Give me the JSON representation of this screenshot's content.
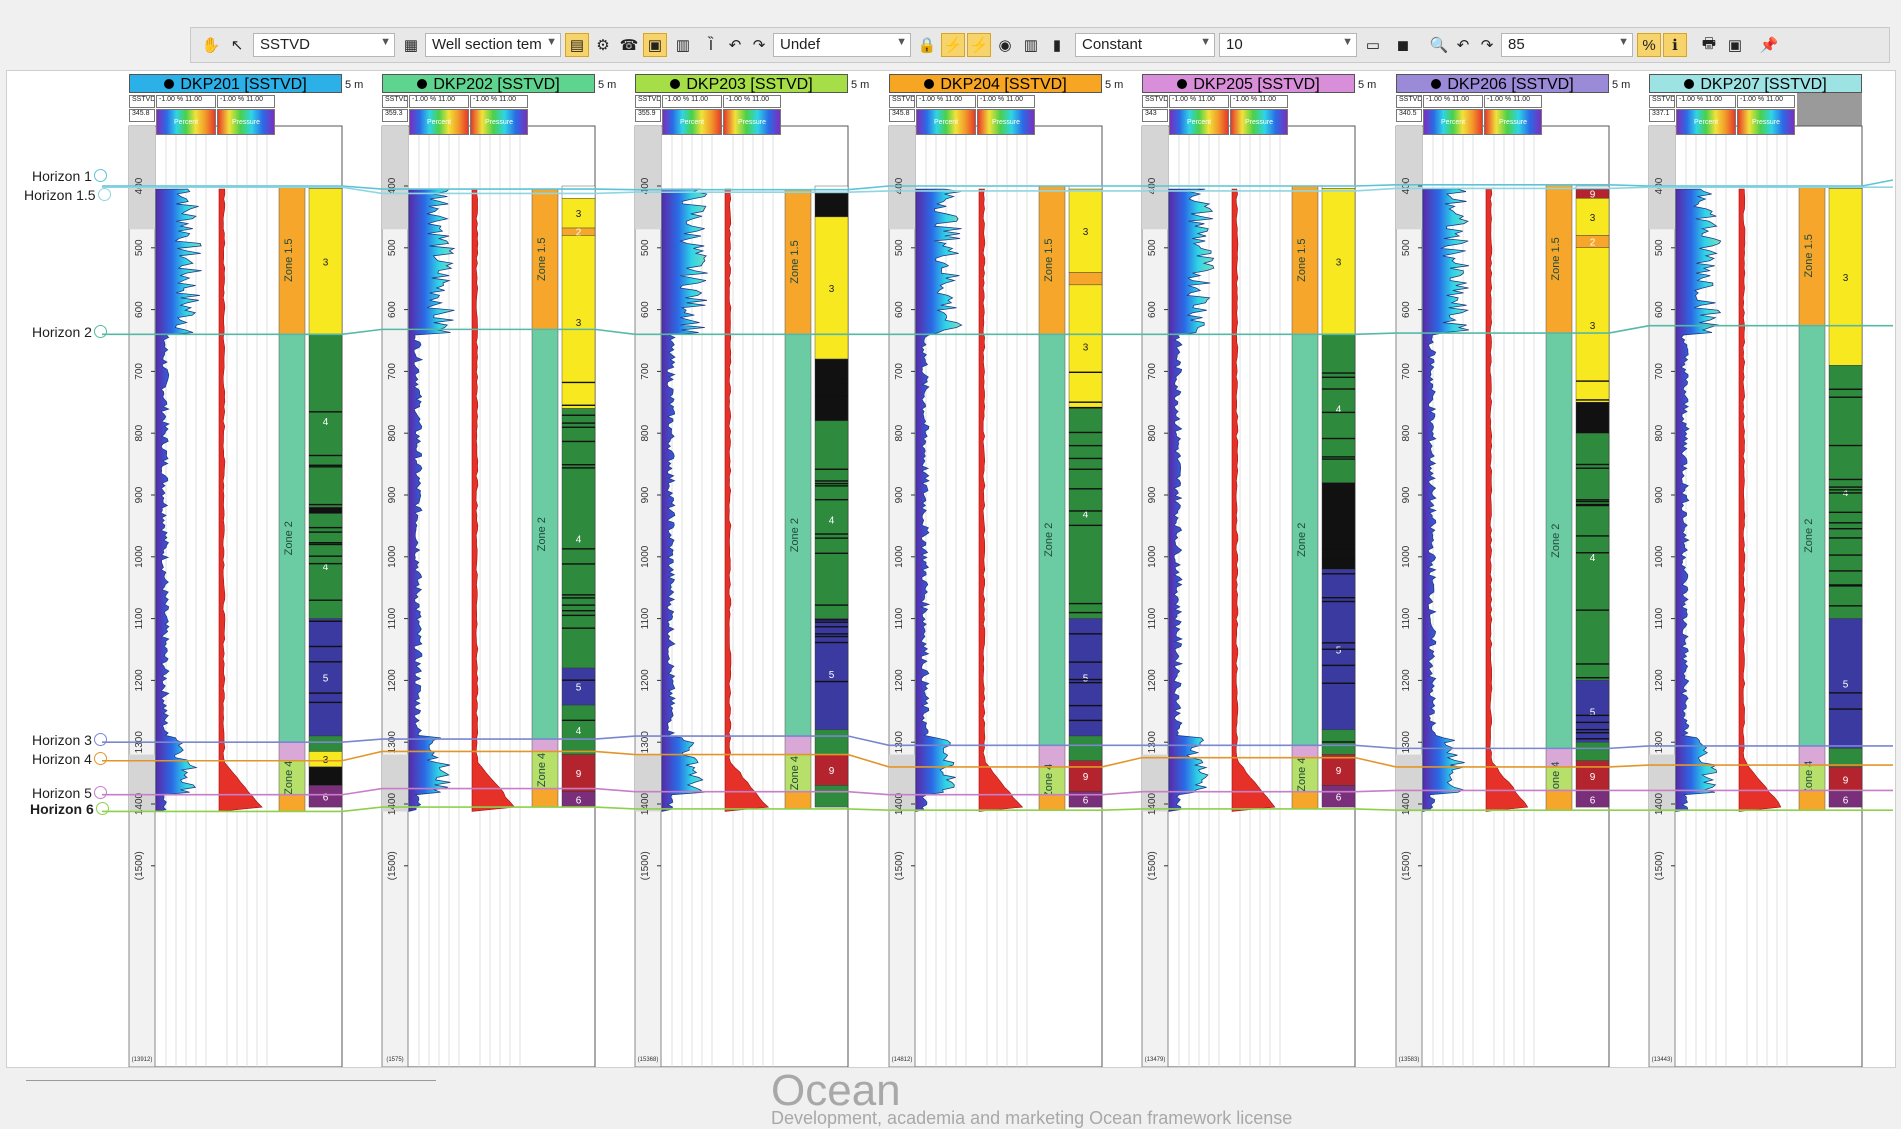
{
  "toolbar": {
    "depth_mode": "SSTVD",
    "template": "Well section tem",
    "undef": "Undef",
    "scale_mode": "Constant",
    "scale_value": "10",
    "zoom": "85"
  },
  "spacing_label": "5 m",
  "depth_ticks": [
    "400",
    "500",
    "600",
    "700",
    "800",
    "900",
    "1000",
    "1100",
    "1200",
    "1300",
    "1400",
    "(1500)"
  ],
  "track_legend": {
    "sstvd": "SSTVD",
    "range": "-1.00 % 11.00",
    "percent": "Percent",
    "pressure": "Pressure"
  },
  "horizons": [
    {
      "name": "Horizon 1",
      "color": "#5cc4d6",
      "bold": false
    },
    {
      "name": "Horizon 1.5",
      "color": "#8fd6e2",
      "bold": false
    },
    {
      "name": "Horizon 2",
      "color": "#55b9a6",
      "bold": false
    },
    {
      "name": "Horizon 3",
      "color": "#7a86d0",
      "bold": false
    },
    {
      "name": "Horizon 4",
      "color": "#e2962a",
      "bold": false
    },
    {
      "name": "Horizon 5",
      "color": "#c77ec9",
      "bold": false
    },
    {
      "name": "Horizon 6",
      "color": "#8fd04a",
      "bold": true
    }
  ],
  "zones": {
    "z15": "Zone 1.5",
    "z2": "Zone 2",
    "z4": "Zone 4"
  },
  "colors": {
    "z15": "#f6a62b",
    "z2": "#6bcba3",
    "z3": "#d9a8d6",
    "z4": "#b7e06b"
  },
  "wells": [
    {
      "name": "DKP201 [SSTVD]",
      "color": "#2bb0e8",
      "top_value": "345.8",
      "bottom_value": "(13912)",
      "facies": [
        [
          400,
          "#ffffff",
          ""
        ],
        [
          404,
          "#f8e81f",
          "3"
        ],
        [
          640,
          "#2e8b3d",
          "4"
        ],
        [
          920,
          "#111111",
          ""
        ],
        [
          930,
          "#2e8b3d",
          "4"
        ],
        [
          1100,
          "#3b3aa0",
          "5"
        ],
        [
          1290,
          "#2e8b3d",
          ""
        ],
        [
          1315,
          "#f8e81f",
          "3"
        ],
        [
          1340,
          "#111111",
          ""
        ],
        [
          1370,
          "#7a2f7a",
          "6"
        ],
        [
          1405,
          "#ffffff",
          ""
        ]
      ]
    },
    {
      "name": "DKP202 [SSTVD]",
      "color": "#5ed48f",
      "top_value": "359.3",
      "bottom_value": "(1575)",
      "facies": [
        [
          400,
          "#ffffff",
          ""
        ],
        [
          420,
          "#f8e81f",
          "3"
        ],
        [
          468,
          "#f6a62b",
          "2"
        ],
        [
          480,
          "#f8e81f",
          "3"
        ],
        [
          760,
          "#2e8b3d",
          "4"
        ],
        [
          1180,
          "#3b3aa0",
          "5"
        ],
        [
          1240,
          "#2e8b3d",
          "4"
        ],
        [
          1320,
          "#b3242f",
          "9"
        ],
        [
          1380,
          "#7a2f7a",
          "6"
        ],
        [
          1405,
          "#ffffff",
          ""
        ]
      ]
    },
    {
      "name": "DKP203 [SSTVD]",
      "color": "#a6de47",
      "top_value": "355.9",
      "bottom_value": "(15368)",
      "facies": [
        [
          400,
          "#ffffff",
          ""
        ],
        [
          412,
          "#111111",
          ""
        ],
        [
          450,
          "#f8e81f",
          "3"
        ],
        [
          680,
          "#111111",
          ""
        ],
        [
          780,
          "#2e8b3d",
          "4"
        ],
        [
          1100,
          "#3b3aa0",
          "5"
        ],
        [
          1280,
          "#2e8b3d",
          ""
        ],
        [
          1320,
          "#b3242f",
          "9"
        ],
        [
          1370,
          "#2e8b3d",
          ""
        ],
        [
          1405,
          "#ffffff",
          ""
        ]
      ]
    },
    {
      "name": "DKP204 [SSTVD]",
      "color": "#f6a623",
      "top_value": "345.8",
      "bottom_value": "(14812)",
      "facies": [
        [
          400,
          "#ffffff",
          ""
        ],
        [
          405,
          "#f8e81f",
          "3"
        ],
        [
          540,
          "#f6a62b",
          ""
        ],
        [
          560,
          "#f8e81f",
          "3"
        ],
        [
          760,
          "#2e8b3d",
          "4"
        ],
        [
          1100,
          "#3b3aa0",
          "5"
        ],
        [
          1290,
          "#2e8b3d",
          ""
        ],
        [
          1330,
          "#b3242f",
          "9"
        ],
        [
          1380,
          "#7a2f7a",
          "6"
        ],
        [
          1405,
          "#ffffff",
          ""
        ]
      ]
    },
    {
      "name": "DKP205 [SSTVD]",
      "color": "#d98ed9",
      "top_value": "343",
      "bottom_value": "(13479)",
      "facies": [
        [
          400,
          "#ffffff",
          ""
        ],
        [
          404,
          "#f8e81f",
          "3"
        ],
        [
          640,
          "#2e8b3d",
          "4"
        ],
        [
          880,
          "#111111",
          ""
        ],
        [
          1020,
          "#3b3aa0",
          "5"
        ],
        [
          1280,
          "#2e8b3d",
          ""
        ],
        [
          1320,
          "#b3242f",
          "9"
        ],
        [
          1370,
          "#7a2f7a",
          "6"
        ],
        [
          1405,
          "#ffffff",
          ""
        ]
      ]
    },
    {
      "name": "DKP206 [SSTVD]",
      "color": "#9a8ad8",
      "top_value": "340.5",
      "bottom_value": "(13583)",
      "facies": [
        [
          400,
          "#ffffff",
          ""
        ],
        [
          405,
          "#b3242f",
          "9"
        ],
        [
          420,
          "#f8e81f",
          "3"
        ],
        [
          480,
          "#f6a62b",
          "2"
        ],
        [
          500,
          "#f8e81f",
          "3"
        ],
        [
          750,
          "#111111",
          ""
        ],
        [
          800,
          "#2e8b3d",
          "4"
        ],
        [
          1200,
          "#3b3aa0",
          "5"
        ],
        [
          1300,
          "#2e8b3d",
          ""
        ],
        [
          1330,
          "#b3242f",
          "9"
        ],
        [
          1380,
          "#7a2f7a",
          "6"
        ],
        [
          1405,
          "#ffffff",
          ""
        ]
      ]
    },
    {
      "name": "DKP207 [SSTVD]",
      "color": "#9ee3e3",
      "top_value": "337.1",
      "bottom_value": "(13443)",
      "facies": [
        [
          400,
          "#ffffff",
          ""
        ],
        [
          404,
          "#f8e81f",
          "3"
        ],
        [
          690,
          "#2e8b3d",
          "4"
        ],
        [
          1100,
          "#3b3aa0",
          "5"
        ],
        [
          1310,
          "#2e8b3d",
          ""
        ],
        [
          1340,
          "#b3242f",
          "9"
        ],
        [
          1380,
          "#7a2f7a",
          "6"
        ],
        [
          1405,
          "#ffffff",
          ""
        ]
      ]
    }
  ],
  "watermark": {
    "title": "Ocean",
    "subtitle": "Development, academia and marketing Ocean framework license"
  }
}
